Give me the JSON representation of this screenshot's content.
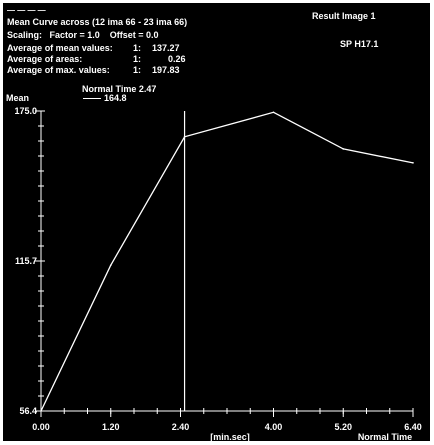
{
  "colors": {
    "background": "#000000",
    "foreground": "#ffffff",
    "frame": "#ffffff"
  },
  "header": {
    "title": "Mean Curve across (12 ima 66 - 23 ima 66)",
    "scaling": "Scaling:   Factor = 1.0    Offset = 0.0",
    "stats": [
      {
        "label": "Average of mean values:",
        "index": "1:",
        "value": "137.27"
      },
      {
        "label": "Average of areas:",
        "index": "1:",
        "value": "0.26"
      },
      {
        "label": "Average of max. values:",
        "index": "1:",
        "value": "197.83"
      }
    ],
    "result_label": "Result Image 1",
    "sp_label": "SP H17.1",
    "marker_label": "Normal Time 2.47",
    "marker_value": "164.8"
  },
  "chart_data": {
    "type": "line",
    "ylabel": "Mean",
    "xlabel": "[min.sec]",
    "xlabel_right": "Normal Time",
    "xlim": [
      0,
      6.4
    ],
    "ylim": [
      56.4,
      175.0
    ],
    "x_ticks": [
      "0.00",
      "1.20",
      "2.40",
      "4.00",
      "5.20",
      "6.40"
    ],
    "x_tick_values": [
      0,
      1.2,
      2.4,
      4.0,
      5.2,
      6.4
    ],
    "y_ticks": [
      "175.0",
      "115.7",
      "56.4"
    ],
    "y_tick_values": [
      175.0,
      115.7,
      56.4
    ],
    "series": [
      {
        "x": [
          0.0,
          1.2,
          2.47,
          4.0,
          5.2,
          6.4
        ],
        "y": [
          56.4,
          114.0,
          164.8,
          174.5,
          160.0,
          154.5
        ]
      }
    ],
    "marker_x": 2.47
  }
}
